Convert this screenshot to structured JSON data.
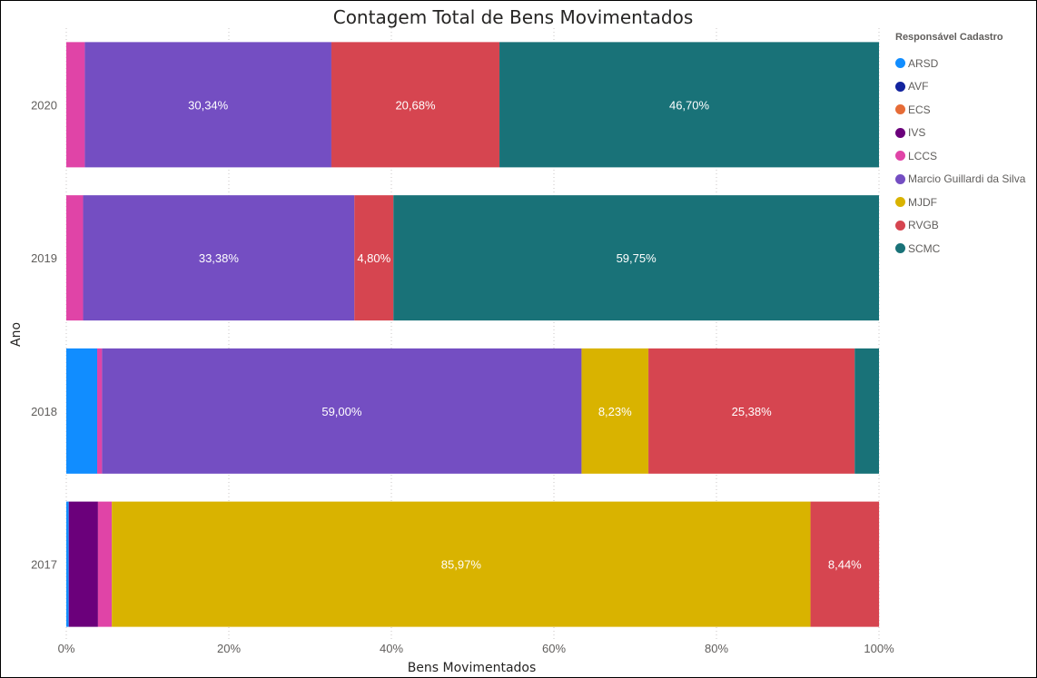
{
  "chart_data": {
    "type": "bar",
    "orientation": "horizontal",
    "stacked": "100%",
    "title": "Contagem Total de Bens Movimentados",
    "xlabel": "Bens Movimentados",
    "ylabel": "Ano",
    "xlim": [
      0,
      100
    ],
    "x_ticks": [
      "0%",
      "20%",
      "40%",
      "60%",
      "80%",
      "100%"
    ],
    "grid": "vertical dotted",
    "legend_title": "Responsável Cadastro",
    "legend_position": "right",
    "categories": [
      "2020",
      "2019",
      "2018",
      "2017"
    ],
    "series": [
      {
        "name": "ARSD",
        "color": "#118DFF",
        "values": [
          0,
          0,
          3.8,
          0.3
        ]
      },
      {
        "name": "AVF",
        "color": "#12239E",
        "values": [
          0,
          0,
          0,
          0
        ]
      },
      {
        "name": "ECS",
        "color": "#E66C37",
        "values": [
          0,
          0,
          0,
          0
        ]
      },
      {
        "name": "IVS",
        "color": "#6B007B",
        "values": [
          0,
          0,
          0,
          3.6
        ]
      },
      {
        "name": "LCCS",
        "color": "#E044A7",
        "values": [
          2.28,
          2.07,
          0.6,
          1.7
        ]
      },
      {
        "name": "Marcio Guillardi da Silva",
        "color": "#744EC2",
        "values": [
          30.34,
          33.38,
          59.0,
          0
        ]
      },
      {
        "name": "MJDF",
        "color": "#D9B300",
        "values": [
          0,
          0,
          8.23,
          85.97
        ]
      },
      {
        "name": "RVGB",
        "color": "#D64550",
        "values": [
          20.68,
          4.8,
          25.38,
          8.44
        ]
      },
      {
        "name": "SCMC",
        "color": "#197278",
        "values": [
          46.7,
          59.75,
          2.99,
          0
        ]
      }
    ],
    "data_labels": [
      {
        "category": "2020",
        "series": "Marcio Guillardi da Silva",
        "text": "30,34%"
      },
      {
        "category": "2020",
        "series": "RVGB",
        "text": "20,68%"
      },
      {
        "category": "2020",
        "series": "SCMC",
        "text": "46,70%"
      },
      {
        "category": "2019",
        "series": "Marcio Guillardi da Silva",
        "text": "33,38%"
      },
      {
        "category": "2019",
        "series": "RVGB",
        "text": "4,80%"
      },
      {
        "category": "2019",
        "series": "SCMC",
        "text": "59,75%"
      },
      {
        "category": "2018",
        "series": "Marcio Guillardi da Silva",
        "text": "59,00%"
      },
      {
        "category": "2018",
        "series": "MJDF",
        "text": "8,23%"
      },
      {
        "category": "2018",
        "series": "RVGB",
        "text": "25,38%"
      },
      {
        "category": "2017",
        "series": "MJDF",
        "text": "85,97%"
      },
      {
        "category": "2017",
        "series": "RVGB",
        "text": "8,44%"
      }
    ]
  }
}
